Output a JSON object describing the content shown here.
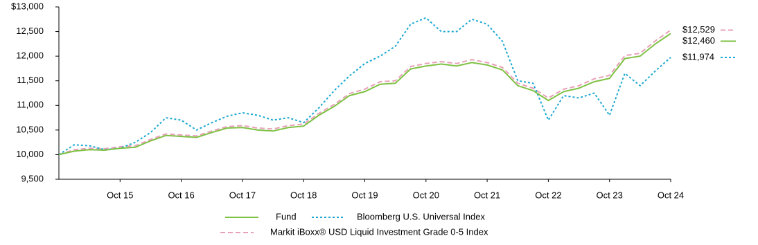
{
  "chart_data": {
    "type": "line",
    "categories": [
      null,
      null,
      null,
      null,
      "Oct 15",
      null,
      null,
      null,
      "Oct 16",
      null,
      null,
      null,
      "Oct 17",
      null,
      null,
      null,
      "Oct 18",
      null,
      null,
      null,
      "Oct 19",
      null,
      null,
      null,
      "Oct 20",
      null,
      null,
      null,
      "Oct 21",
      null,
      null,
      null,
      "Oct 22",
      null,
      null,
      null,
      "Oct 23",
      null,
      null,
      null,
      "Oct 24"
    ],
    "ylim": [
      9500,
      13000
    ],
    "yticks": [
      {
        "value": 9500,
        "label": "9,500"
      },
      {
        "value": 10000,
        "label": "10,000"
      },
      {
        "value": 10500,
        "label": "10,500"
      },
      {
        "value": 11000,
        "label": "11,000"
      },
      {
        "value": 11500,
        "label": "11,500"
      },
      {
        "value": 12000,
        "label": "12,000"
      },
      {
        "value": 12500,
        "label": "12,500"
      },
      {
        "value": 13000,
        "label": "$13,000"
      }
    ],
    "series": [
      {
        "name": "Markit iBoxx® USD Liquid Investment Grade 0-5 Index",
        "color": "#e8a0b8",
        "dash": "dashed",
        "values": [
          10000,
          10100,
          10130,
          10120,
          10160,
          10180,
          10310,
          10420,
          10400,
          10380,
          10480,
          10570,
          10590,
          10540,
          10520,
          10590,
          10620,
          10840,
          11020,
          11240,
          11330,
          11480,
          11500,
          11790,
          11850,
          11890,
          11850,
          11930,
          11870,
          11770,
          11450,
          11350,
          11150,
          11330,
          11400,
          11540,
          11610,
          12010,
          12060,
          12310,
          12529
        ],
        "value_labels": [
          null,
          null,
          null,
          null,
          null,
          null,
          null,
          null,
          null,
          null,
          null,
          null,
          null,
          null,
          null,
          null,
          null,
          null,
          null,
          null,
          null,
          null,
          null,
          null,
          null,
          null,
          null,
          null,
          null,
          null,
          null,
          null,
          null,
          null,
          null,
          null,
          null,
          null,
          null,
          null,
          "$12,529"
        ]
      },
      {
        "name": "Bloomberg U.S. Universal Index",
        "color": "#1ba8d0",
        "dash": "dotted",
        "values": [
          10000,
          10200,
          10180,
          10100,
          10130,
          10250,
          10450,
          10750,
          10700,
          10500,
          10650,
          10780,
          10850,
          10800,
          10700,
          10750,
          10650,
          10950,
          11300,
          11600,
          11850,
          12000,
          12200,
          12650,
          12780,
          12500,
          12500,
          12750,
          12650,
          12300,
          11500,
          11450,
          10700,
          11200,
          11150,
          11250,
          10800,
          11650,
          11400,
          11700,
          11974
        ],
        "value_labels": [
          null,
          null,
          null,
          null,
          null,
          null,
          null,
          null,
          null,
          null,
          null,
          null,
          null,
          null,
          null,
          null,
          null,
          null,
          null,
          null,
          null,
          null,
          null,
          null,
          null,
          null,
          null,
          null,
          null,
          null,
          null,
          null,
          null,
          null,
          null,
          null,
          null,
          null,
          null,
          null,
          "$11,974"
        ]
      },
      {
        "name": "Fund",
        "color": "#7dc142",
        "dash": "solid",
        "values": [
          10000,
          10070,
          10100,
          10090,
          10130,
          10150,
          10280,
          10390,
          10370,
          10350,
          10450,
          10540,
          10550,
          10500,
          10480,
          10550,
          10580,
          10800,
          10980,
          11200,
          11280,
          11430,
          11450,
          11740,
          11800,
          11840,
          11800,
          11870,
          11820,
          11720,
          11400,
          11300,
          11100,
          11280,
          11350,
          11480,
          11550,
          11950,
          12000,
          12250,
          12460
        ],
        "value_labels": [
          null,
          null,
          null,
          null,
          null,
          null,
          null,
          null,
          null,
          null,
          null,
          null,
          null,
          null,
          null,
          null,
          null,
          null,
          null,
          null,
          null,
          null,
          null,
          null,
          null,
          null,
          null,
          null,
          null,
          null,
          null,
          null,
          null,
          null,
          null,
          null,
          null,
          null,
          null,
          null,
          "$12,460"
        ]
      }
    ]
  }
}
